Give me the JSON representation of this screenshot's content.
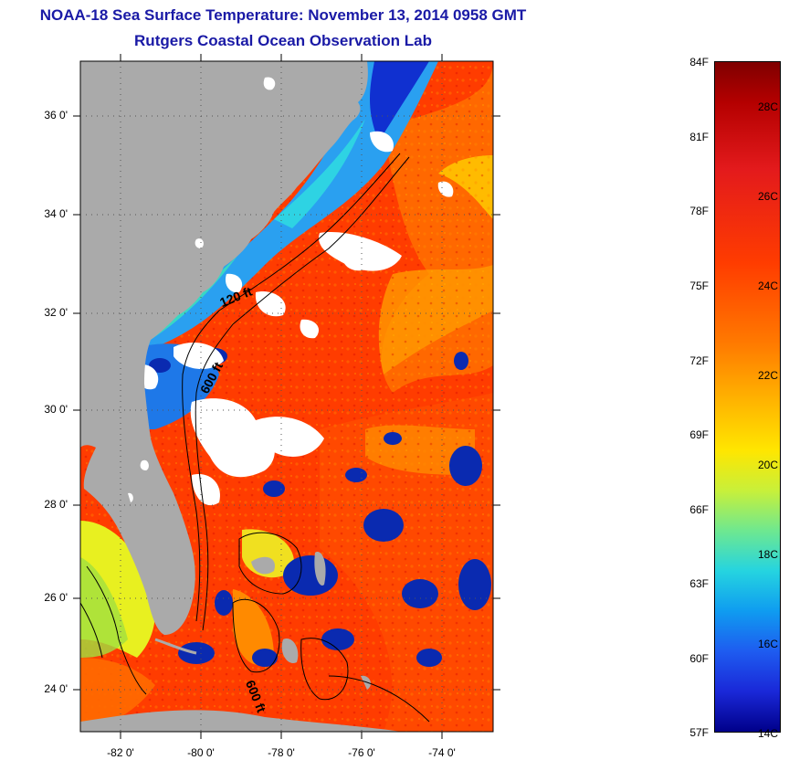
{
  "header": {
    "title": "NOAA-18 Sea Surface Temperature:  November 13, 2014 0958 GMT",
    "subtitle": "Rutgers Coastal Ocean Observation Lab"
  },
  "map": {
    "lat_ticks": [
      "36 0'",
      "34 0'",
      "32 0'",
      "30 0'",
      "28 0'",
      "26 0'",
      "24 0'"
    ],
    "lon_ticks": [
      "-82 0'",
      "-80 0'",
      "-78 0'",
      "-76 0'",
      "-74 0'"
    ],
    "contour_labels": [
      "120 ft",
      "600 ft",
      "600 ft"
    ],
    "colors": {
      "land": "#aaaaaa",
      "cloud": "#ffffff",
      "warm": "#ff3000",
      "cold": "#0a2ab0"
    }
  },
  "colorbar": {
    "fahrenheit": [
      "84F",
      "81F",
      "78F",
      "75F",
      "72F",
      "69F",
      "66F",
      "63F",
      "60F",
      "57F"
    ],
    "celsius": [
      "28C",
      "26C",
      "24C",
      "22C",
      "20C",
      "18C",
      "16C",
      "14C"
    ]
  }
}
